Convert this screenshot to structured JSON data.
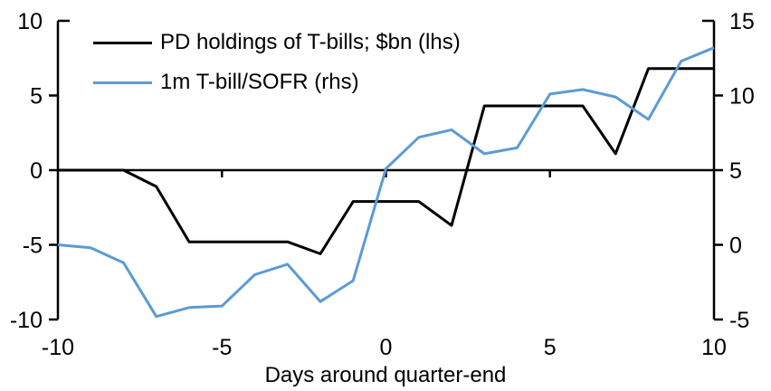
{
  "chart_data": {
    "type": "line",
    "title": "",
    "xlabel": "Days around quarter-end",
    "x": [
      -10,
      -9,
      -8,
      -7,
      -6,
      -5,
      -4,
      -3,
      -2,
      -1,
      0,
      1,
      2,
      3,
      4,
      5,
      6,
      7,
      8,
      9,
      10
    ],
    "x_ticks": [
      -10,
      -5,
      0,
      5,
      10
    ],
    "axes": {
      "left": {
        "ylim": [
          -10,
          10
        ],
        "ticks": [
          10,
          5,
          0,
          -5,
          -10
        ]
      },
      "right": {
        "ylim": [
          -5,
          15
        ],
        "ticks": [
          15,
          10,
          5,
          0,
          -5
        ]
      }
    },
    "grid": false,
    "zero_line": true,
    "legend_position": "top-left",
    "series": [
      {
        "name": "PD holdings of T-bills; $bn (lhs)",
        "axis": "left",
        "color": "#000000",
        "values": [
          0,
          0,
          0,
          -1.1,
          -4.8,
          -4.8,
          -4.8,
          -4.8,
          -5.6,
          -2.1,
          -2.1,
          -2.1,
          -3.7,
          4.3,
          4.3,
          4.3,
          4.3,
          1.1,
          6.8,
          6.8,
          6.8
        ]
      },
      {
        "name": "1m T-bill/SOFR (rhs)",
        "axis": "right",
        "color": "#5B9BD5",
        "values": [
          0,
          -0.2,
          -1.2,
          -4.8,
          -4.2,
          -4.1,
          -2.0,
          -1.3,
          -3.8,
          -2.4,
          5.1,
          7.2,
          7.7,
          6.1,
          6.5,
          10.1,
          10.4,
          9.9,
          8.4,
          12.3,
          13.2
        ]
      }
    ]
  },
  "colors": {
    "background": "#ffffff",
    "axis": "#000000",
    "text": "#000000",
    "series_black": "#000000",
    "series_blue": "#5B9BD5"
  }
}
